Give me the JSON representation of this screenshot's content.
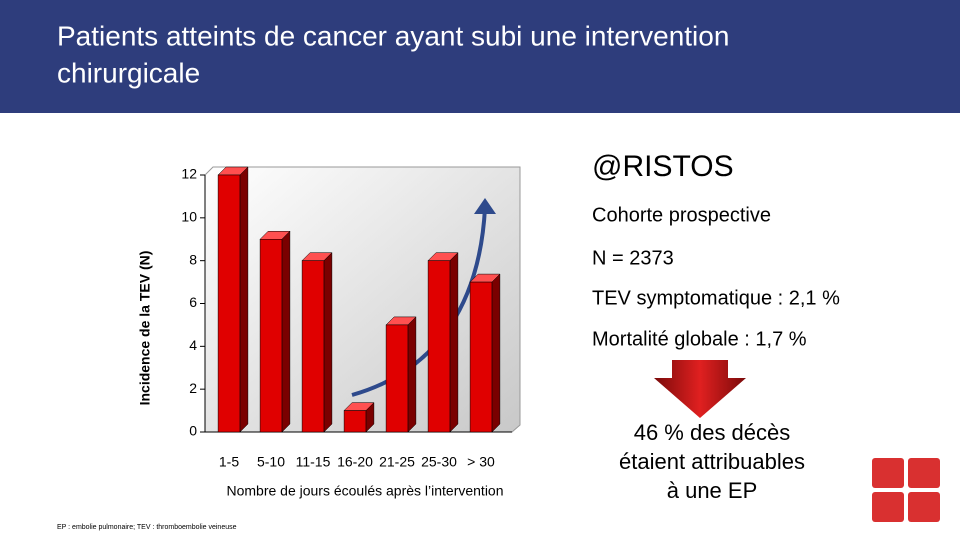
{
  "header": {
    "title": [
      "Patients atteints de cancer ayant subi une intervention",
      "chirurgicale"
    ]
  },
  "chart_data": {
    "type": "bar",
    "categories": [
      "1-5",
      "5-10",
      "11-15",
      "16-20",
      "21-25",
      "25-30",
      "> 30"
    ],
    "values": [
      12,
      9,
      8,
      1,
      5,
      8,
      7
    ],
    "color": "#e00000",
    "ylim": [
      0,
      12
    ],
    "yticks": [
      0,
      2,
      4,
      6,
      8,
      10,
      12
    ],
    "grid": false,
    "y_label": "Incidence de la TEV (N)",
    "x_label": "Nombre de jours écoulés après l’intervention"
  },
  "panel": {
    "title": "@RISTOS",
    "lines": [
      "Cohorte prospective",
      "N = 2373",
      "TEV symptomatique : 2,1 %",
      "Mortalité globale : 1,7 %"
    ],
    "conclusion": [
      "46 % des décès",
      "étaient attribuables",
      "à une EP"
    ]
  },
  "footnote": "EP : embolie pulmonaire; TEV : thromboembolie veineuse"
}
